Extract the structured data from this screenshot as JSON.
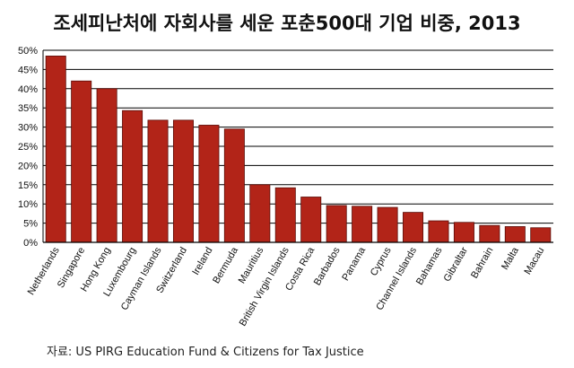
{
  "chart_data": {
    "type": "bar",
    "title": "조세피난처에 자회사를 세운 포춘500대 기업 비중, 2013",
    "categories": [
      "Netherlands",
      "Singapore",
      "Hong Kong",
      "Luxembourg",
      "Cayman Islands",
      "Switzerland",
      "Ireland",
      "Bermuda",
      "Mauritius",
      "British Virgin Islands",
      "Costa Rica",
      "Barbados",
      "Panama",
      "Cyprus",
      "Channel Islands",
      "Bahamas",
      "Gibraltar",
      "Bahrain",
      "Malta",
      "Macau"
    ],
    "values": [
      48.5,
      42,
      40,
      34.3,
      31.8,
      31.8,
      30.5,
      29.5,
      15,
      14.2,
      11.8,
      9.6,
      9.4,
      9.1,
      7.8,
      5.6,
      5.2,
      4.4,
      4.1,
      3.8
    ],
    "ylim": [
      0,
      50
    ],
    "ytick_labels": [
      "0%",
      "5%",
      "10%",
      "15%",
      "20%",
      "25%",
      "30%",
      "35%",
      "40%",
      "45%",
      "50%"
    ],
    "grid": true,
    "bar_color": "#b22418",
    "xlabel": "",
    "ylabel": ""
  },
  "source": "자료: US PIRG Education Fund & Citizens for Tax Justice"
}
